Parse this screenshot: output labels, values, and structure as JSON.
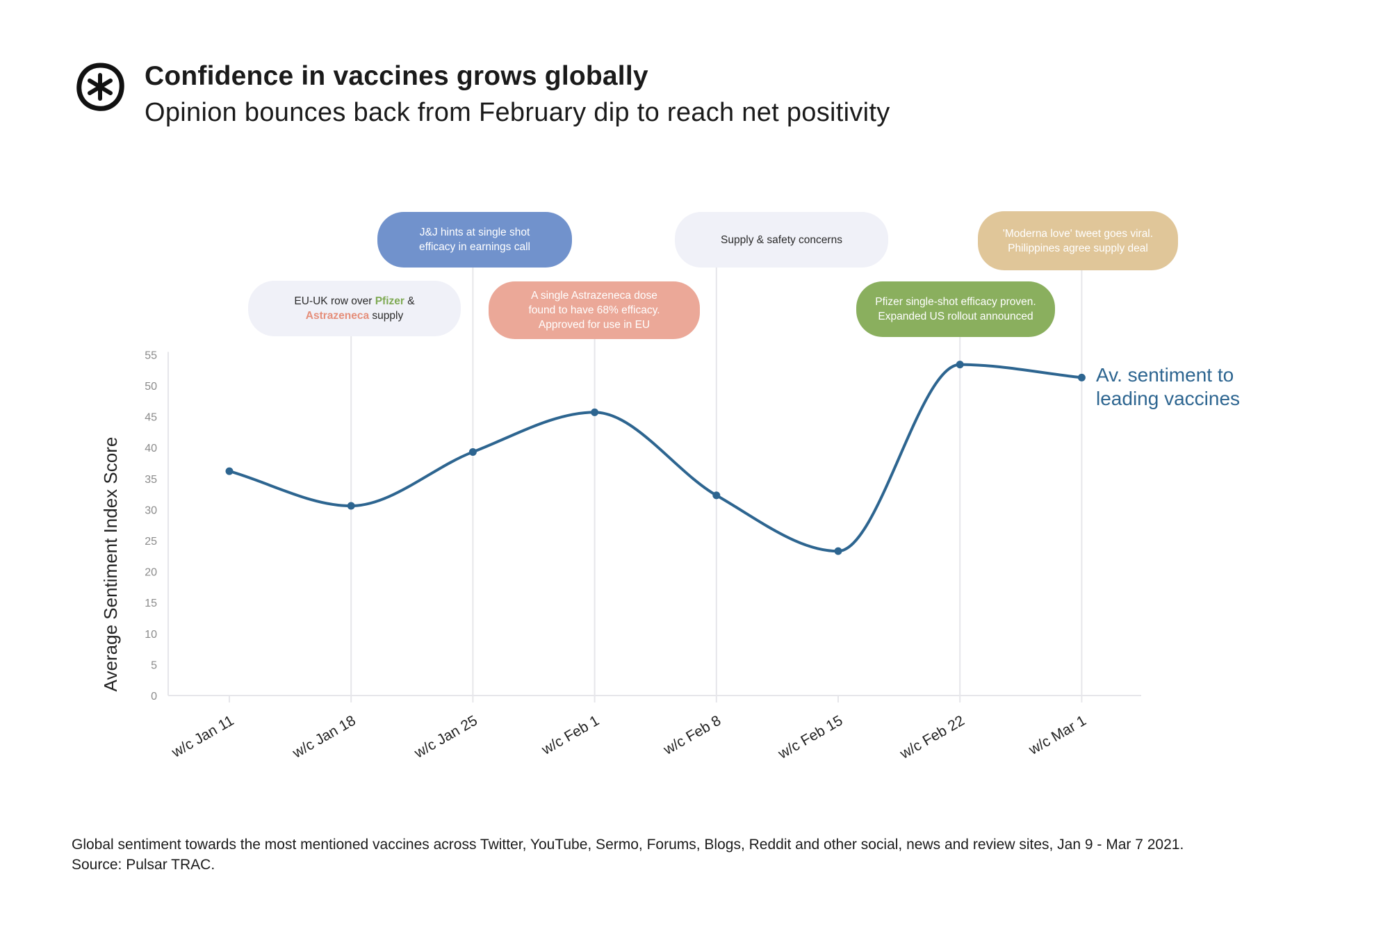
{
  "header": {
    "title": "Confidence in vaccines grows globally",
    "subtitle": "Opinion bounces back from February dip to reach net positivity",
    "logo_icon": "asterisk-circle-logo"
  },
  "chart_data": {
    "type": "line",
    "categories": [
      "w/c Jan 11",
      "w/c Jan 18",
      "w/c Jan 25",
      "w/c Feb 1",
      "w/c Feb 8",
      "w/c Feb 15",
      "w/c Feb 22",
      "w/c Mar 1"
    ],
    "series": [
      {
        "name": "Av. sentiment to leading vaccines",
        "values": [
          36.2,
          30.6,
          39.3,
          45.7,
          32.3,
          23.3,
          53.4,
          51.3
        ],
        "color": "#2d6590"
      }
    ],
    "ylabel": "Average Sentiment Index Score",
    "ylim": [
      0,
      55
    ],
    "yticks": [
      "0",
      "5",
      "10",
      "15",
      "20",
      "25",
      "30",
      "35",
      "40",
      "45",
      "50",
      "55"
    ],
    "grid": false,
    "legend": "direct label at end of line",
    "series_label_lines": [
      "Av. sentiment to",
      "leading vaccines"
    ],
    "annotations": [
      {
        "category": "w/c Jan 18",
        "lines": [
          [
            {
              "text": "EU-UK row over "
            },
            {
              "text": "Pfizer",
              "color": "#7faa54",
              "bold": true
            },
            {
              "text": " &"
            }
          ],
          [
            {
              "text": "Astrazeneca",
              "color": "#e58f7b",
              "bold": true
            },
            {
              "text": " supply"
            }
          ]
        ],
        "bg": "#f0f1f8",
        "fg": "#2a2a2a"
      },
      {
        "category": "w/c Jan 25",
        "lines": [
          [
            {
              "text": "J&J hints at single shot"
            }
          ],
          [
            {
              "text": "efficacy in earnings call"
            }
          ]
        ],
        "bg": "#7192cc",
        "fg": "#ffffff"
      },
      {
        "category": "w/c Feb 1",
        "lines": [
          [
            {
              "text": "A single Astrazeneca dose"
            }
          ],
          [
            {
              "text": "found to have 68% efficacy."
            }
          ],
          [
            {
              "text": "Approved for use in EU"
            }
          ]
        ],
        "bg": "#eba898",
        "fg": "#ffffff"
      },
      {
        "category": "w/c Feb 8",
        "lines": [
          [
            {
              "text": "Supply & safety concerns"
            }
          ]
        ],
        "bg": "#f0f1f8",
        "fg": "#2a2a2a"
      },
      {
        "category": "w/c Feb 22",
        "lines": [
          [
            {
              "text": "Pfizer single-shot efficacy proven."
            }
          ],
          [
            {
              "text": "Expanded US rollout announced"
            }
          ]
        ],
        "bg": "#8aaf5e",
        "fg": "#ffffff"
      },
      {
        "category": "w/c Mar 1",
        "lines": [
          [
            {
              "text": "'Moderna love' tweet goes viral."
            }
          ],
          [
            {
              "text": "Philippines agree supply deal"
            }
          ]
        ],
        "bg": "#e0c699",
        "fg": "#ffffff"
      }
    ]
  },
  "footnote": {
    "line1": "Global sentiment towards the most mentioned vaccines across Twitter, YouTube, Sermo, Forums, Blogs, Reddit and other social, news and review sites, Jan 9 - Mar 7 2021.",
    "line2": "Source: Pulsar TRAC."
  }
}
